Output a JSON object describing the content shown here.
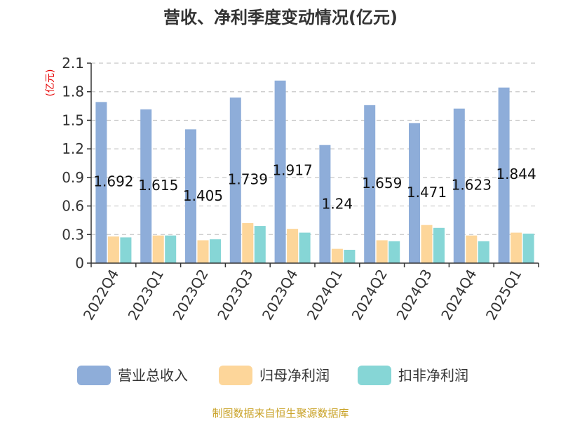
{
  "chart_data": {
    "type": "bar",
    "title": "营收、净利季度变动情况(亿元)",
    "ylabel": "(亿元)",
    "xlabel": "",
    "ylim": [
      0,
      2.1
    ],
    "yticks": [
      0,
      0.3,
      0.6,
      0.9,
      1.2,
      1.5,
      1.8,
      2.1
    ],
    "ytick_labels": [
      "0",
      "0.3",
      "0.6",
      "0.9",
      "1.2",
      "1.5",
      "1.8",
      "2.1"
    ],
    "grid": true,
    "legend_position": "bottom",
    "categories": [
      "2022Q4",
      "2023Q1",
      "2023Q2",
      "2023Q3",
      "2023Q4",
      "2024Q1",
      "2024Q2",
      "2024Q3",
      "2024Q4",
      "2025Q1"
    ],
    "series": [
      {
        "name": "营业总收入",
        "color": "#8eadd9",
        "values": [
          1.692,
          1.615,
          1.405,
          1.739,
          1.917,
          1.24,
          1.659,
          1.471,
          1.623,
          1.844
        ],
        "labels": [
          "1.692",
          "1.615",
          "1.405",
          "1.739",
          "1.917",
          "1.24",
          "1.659",
          "1.471",
          "1.623",
          "1.844"
        ]
      },
      {
        "name": "归母净利润",
        "color": "#fdd69a",
        "values": [
          0.28,
          0.29,
          0.24,
          0.42,
          0.36,
          0.15,
          0.24,
          0.4,
          0.29,
          0.32
        ]
      },
      {
        "name": "扣非净利润",
        "color": "#86d6d6",
        "values": [
          0.27,
          0.29,
          0.25,
          0.39,
          0.32,
          0.14,
          0.23,
          0.37,
          0.23,
          0.31
        ]
      }
    ],
    "source": "制图数据来自恒生聚源数据库"
  }
}
